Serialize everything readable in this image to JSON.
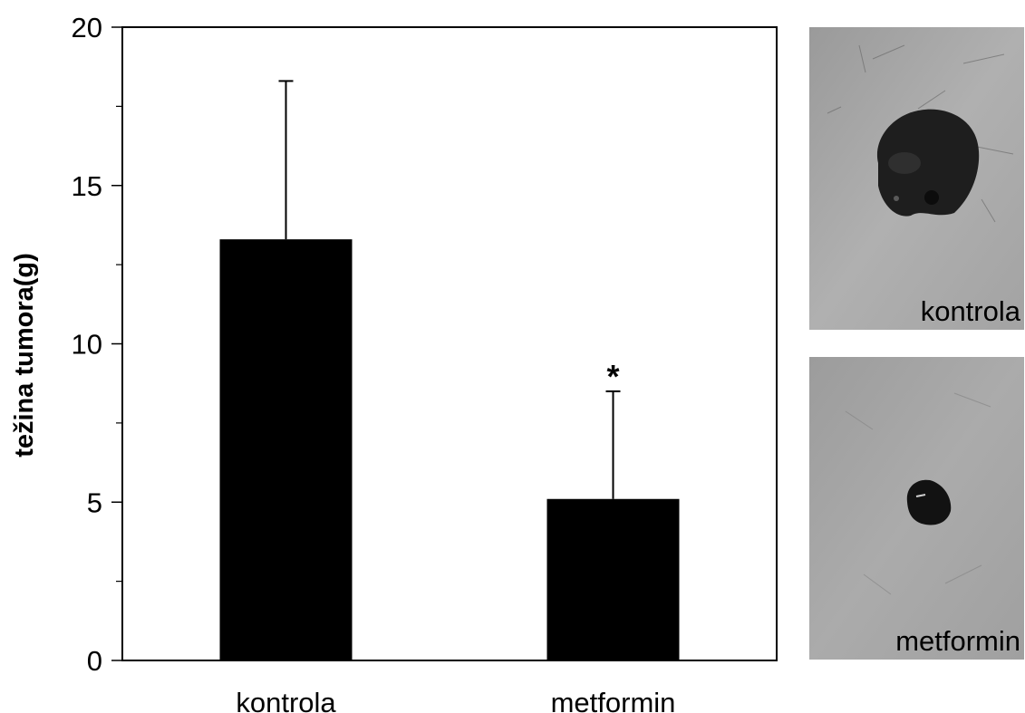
{
  "chart_data": {
    "type": "bar",
    "categories": [
      "kontrola",
      "metformin"
    ],
    "values": [
      13.3,
      5.1
    ],
    "error_upper": [
      18.3,
      8.5
    ],
    "annotations": [
      {
        "category": "metformin",
        "text": "*"
      }
    ],
    "ylabel": "težina tumora(g)",
    "xlabel": "",
    "ylim": [
      0,
      20
    ],
    "y_major_ticks": [
      0,
      5,
      10,
      15,
      20
    ],
    "y_minor_ticks": [
      2.5,
      7.5,
      12.5,
      17.5
    ],
    "bar_color": "#000000",
    "grid": false
  },
  "photos": [
    {
      "label": "kontrola",
      "background": "#a9a9a9",
      "tumor_color": "#1e1e1e"
    },
    {
      "label": "metformin",
      "background": "#a4a4a4",
      "tumor_color": "#121212"
    }
  ]
}
